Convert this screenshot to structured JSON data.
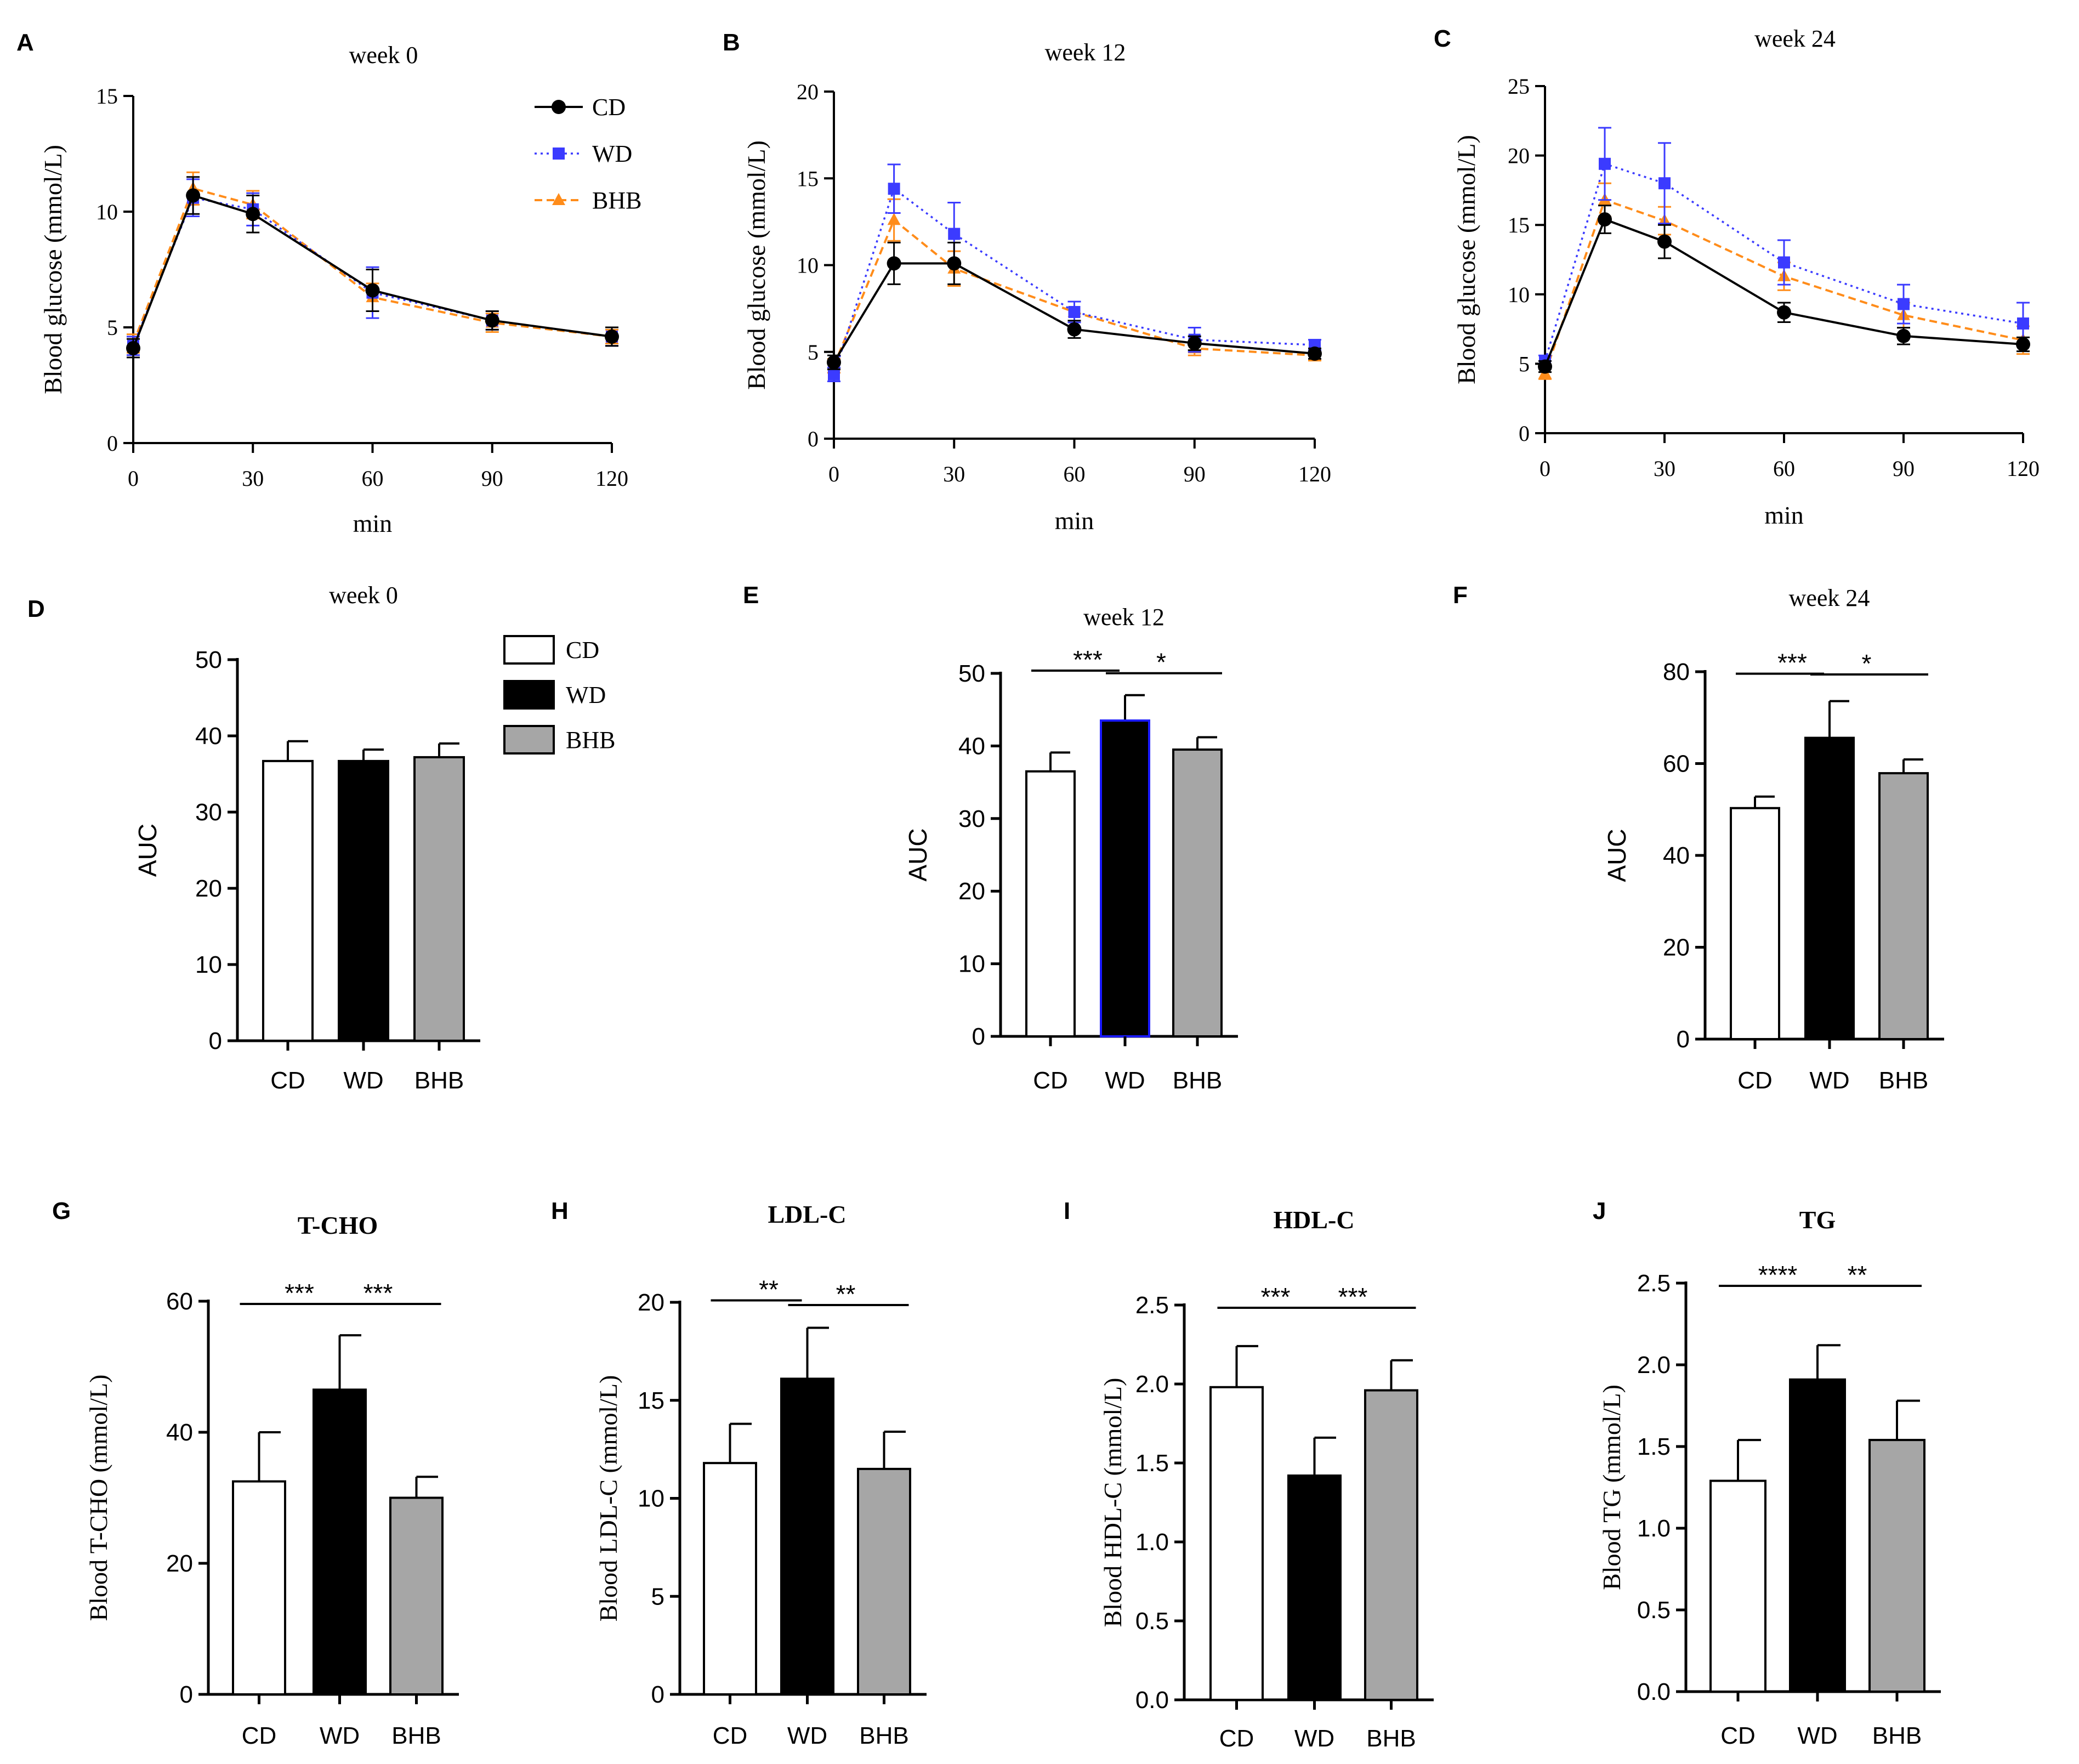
{
  "figure_letters": [
    "A",
    "B",
    "C",
    "D",
    "E",
    "F",
    "G",
    "H",
    "I",
    "J"
  ],
  "colors": {
    "CD": "#000000",
    "WD_line": "#3b3bff",
    "BHB_line": "#ff8c1a",
    "bar_CD": "#ffffff",
    "bar_WD": "#000000",
    "bar_BHB": "#a6a6a6",
    "WD_bar_border_E": "#1a1aff"
  },
  "chart_data": [
    {
      "id": "A",
      "type": "line",
      "title": "week 0",
      "xlabel": "min",
      "ylabel": "Blood glucose (mmol/L)",
      "x": [
        0,
        15,
        30,
        60,
        90,
        120
      ],
      "xticks": [
        0,
        30,
        60,
        90,
        120
      ],
      "yticks": [
        0,
        5,
        10,
        15
      ],
      "ylim": [
        0,
        15
      ],
      "xlim": [
        0,
        120
      ],
      "legend": [
        "CD",
        "WD",
        "BHB"
      ],
      "series": [
        {
          "name": "CD",
          "values": [
            4.1,
            10.7,
            9.9,
            6.6,
            5.3,
            4.6
          ],
          "err": [
            0.4,
            0.8,
            0.8,
            0.9,
            0.4,
            0.4
          ]
        },
        {
          "name": "WD",
          "values": [
            4.2,
            10.6,
            10.1,
            6.5,
            5.3,
            4.6
          ],
          "err": [
            0.4,
            0.8,
            0.7,
            1.1,
            0.4,
            0.4
          ]
        },
        {
          "name": "BHB",
          "values": [
            4.3,
            11.0,
            10.3,
            6.3,
            5.2,
            4.6
          ],
          "err": [
            0.4,
            0.7,
            0.6,
            0.6,
            0.4,
            0.3
          ]
        }
      ]
    },
    {
      "id": "B",
      "type": "line",
      "title": "week 12",
      "xlabel": "min",
      "ylabel": "Blood glucose (mmol/L)",
      "x": [
        0,
        15,
        30,
        60,
        90,
        120
      ],
      "xticks": [
        0,
        30,
        60,
        90,
        120
      ],
      "yticks": [
        0,
        5,
        10,
        15,
        20
      ],
      "ylim": [
        0,
        20
      ],
      "xlim": [
        0,
        120
      ],
      "series": [
        {
          "name": "CD",
          "values": [
            4.4,
            10.1,
            10.1,
            6.3,
            5.5,
            4.9
          ],
          "err": [
            0.4,
            1.2,
            1.2,
            0.5,
            0.4,
            0.3
          ]
        },
        {
          "name": "WD",
          "values": [
            3.7,
            14.4,
            11.8,
            7.3,
            5.7,
            5.4
          ],
          "err": [
            0.4,
            1.4,
            1.8,
            0.6,
            0.7,
            0.3
          ]
        },
        {
          "name": "BHB",
          "values": [
            4.2,
            12.6,
            9.8,
            7.3,
            5.2,
            4.8
          ],
          "err": [
            0.4,
            1.2,
            1.0,
            0.6,
            0.4,
            0.3
          ]
        }
      ]
    },
    {
      "id": "C",
      "type": "line",
      "title": "week 24",
      "xlabel": "min",
      "ylabel": "Blood glucose (mmol/L)",
      "x": [
        0,
        15,
        30,
        60,
        90,
        120
      ],
      "xticks": [
        0,
        30,
        60,
        90,
        120
      ],
      "yticks": [
        0,
        5,
        10,
        15,
        20,
        25
      ],
      "ylim": [
        0,
        25
      ],
      "xlim": [
        0,
        120
      ],
      "series": [
        {
          "name": "CD",
          "values": [
            4.8,
            15.4,
            13.8,
            8.7,
            7.0,
            6.4
          ],
          "err": [
            0.4,
            1.0,
            1.2,
            0.7,
            0.6,
            0.5
          ]
        },
        {
          "name": "WD",
          "values": [
            5.2,
            19.4,
            18.0,
            12.3,
            9.3,
            7.9
          ],
          "err": [
            0.4,
            2.6,
            2.9,
            1.6,
            1.4,
            1.5
          ]
        },
        {
          "name": "BHB",
          "values": [
            4.3,
            16.8,
            15.3,
            11.3,
            8.5,
            6.7
          ],
          "err": [
            0.4,
            1.2,
            1.0,
            1.0,
            0.9,
            1.0
          ]
        }
      ]
    },
    {
      "id": "D",
      "type": "bar",
      "title": "week 0",
      "ylabel": "AUC",
      "categories": [
        "CD",
        "WD",
        "BHB"
      ],
      "values": [
        36.7,
        36.7,
        37.2
      ],
      "err": [
        2.6,
        1.5,
        1.8
      ],
      "ylim": [
        0,
        50
      ],
      "yticks": [
        0,
        10,
        20,
        30,
        40,
        50
      ],
      "legend": [
        "CD",
        "WD",
        "BHB"
      ],
      "sig": []
    },
    {
      "id": "E",
      "type": "bar",
      "title": "week 12",
      "ylabel": "AUC",
      "categories": [
        "CD",
        "WD",
        "BHB"
      ],
      "values": [
        36.5,
        43.5,
        39.5
      ],
      "err": [
        2.6,
        3.5,
        1.7
      ],
      "ylim": [
        0,
        50
      ],
      "yticks": [
        0,
        10,
        20,
        30,
        40,
        50
      ],
      "sig": [
        {
          "from": 0,
          "to": 1,
          "label": "***"
        },
        {
          "from": 1,
          "to": 2,
          "label": "*"
        }
      ]
    },
    {
      "id": "F",
      "type": "bar",
      "title": "week 24",
      "ylabel": "AUC",
      "categories": [
        "CD",
        "WD",
        "BHB"
      ],
      "values": [
        50.3,
        65.6,
        57.9
      ],
      "err": [
        2.5,
        8.0,
        3.0
      ],
      "ylim": [
        0,
        80
      ],
      "yticks": [
        0,
        20,
        40,
        60,
        80
      ],
      "sig": [
        {
          "from": 0,
          "to": 1,
          "label": "***"
        },
        {
          "from": 1,
          "to": 2,
          "label": "*"
        }
      ]
    },
    {
      "id": "G",
      "type": "bar",
      "title": "T-CHO",
      "ylabel": "Blood T-CHO (mmol/L)",
      "categories": [
        "CD",
        "WD",
        "BHB"
      ],
      "values": [
        32.5,
        46.5,
        30.0
      ],
      "err": [
        7.5,
        8.3,
        3.2
      ],
      "ylim": [
        0,
        60
      ],
      "yticks": [
        0,
        20,
        40,
        60
      ],
      "sig": [
        {
          "from": 0,
          "to": 1,
          "label": "***"
        },
        {
          "from": 1,
          "to": 2,
          "label": "***"
        }
      ]
    },
    {
      "id": "H",
      "type": "bar",
      "title": "LDL-C",
      "ylabel": "Blood LDL-C (mmol/L)",
      "categories": [
        "CD",
        "WD",
        "BHB"
      ],
      "values": [
        11.8,
        16.1,
        11.5
      ],
      "err": [
        2.0,
        2.6,
        1.9
      ],
      "ylim": [
        0,
        20
      ],
      "yticks": [
        0,
        5,
        10,
        15,
        20
      ],
      "sig": [
        {
          "from": 0,
          "to": 1,
          "label": "**"
        },
        {
          "from": 1,
          "to": 2,
          "label": "**"
        }
      ]
    },
    {
      "id": "I",
      "type": "bar",
      "title": "HDL-C",
      "ylabel": "Blood HDL-C (mmol/L)",
      "categories": [
        "CD",
        "WD",
        "BHB"
      ],
      "values": [
        1.98,
        1.42,
        1.96
      ],
      "err": [
        0.26,
        0.24,
        0.19
      ],
      "ylim": [
        0,
        2.5
      ],
      "yticks": [
        "0.0",
        "0.5",
        "1.0",
        "1.5",
        "2.0",
        "2.5"
      ],
      "sig": [
        {
          "from": 0,
          "to": 1,
          "label": "***"
        },
        {
          "from": 1,
          "to": 2,
          "label": "***"
        }
      ]
    },
    {
      "id": "J",
      "type": "bar",
      "title": "TG",
      "ylabel": "Blood TG (mmol/L)",
      "categories": [
        "CD",
        "WD",
        "BHB"
      ],
      "values": [
        1.29,
        1.91,
        1.54
      ],
      "err": [
        0.25,
        0.21,
        0.24
      ],
      "ylim": [
        0,
        2.5
      ],
      "yticks": [
        "0.0",
        "0.5",
        "1.0",
        "1.5",
        "2.0",
        "2.5"
      ],
      "sig": [
        {
          "from": 0,
          "to": 1,
          "label": "****"
        },
        {
          "from": 1,
          "to": 2,
          "label": "**"
        }
      ]
    }
  ]
}
